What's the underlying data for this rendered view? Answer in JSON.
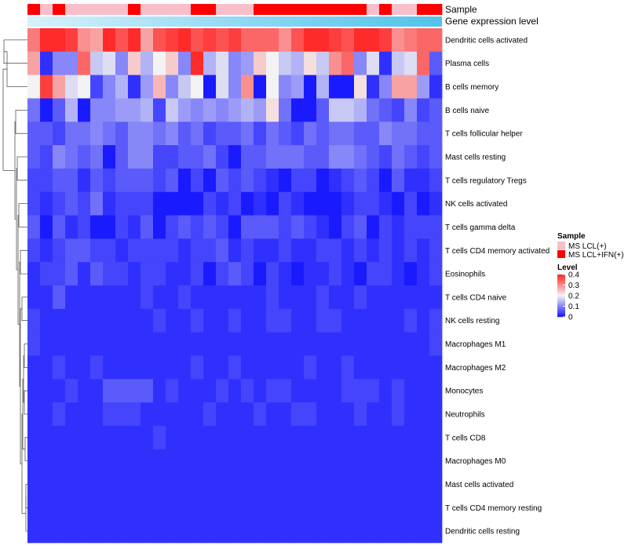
{
  "chart_data": {
    "type": "heatmap",
    "title": "",
    "annotation_labels": {
      "sample": "Sample",
      "expression": "Gene expression level"
    },
    "sample_groups": [
      "MS LCL(+)",
      "MS LCL+IFN(+)"
    ],
    "sample_assignments": [
      1,
      0,
      1,
      0,
      0,
      0,
      0,
      0,
      1,
      0,
      0,
      0,
      0,
      1,
      1,
      0,
      0,
      0,
      1,
      1,
      1,
      1,
      1,
      1,
      1,
      1,
      1,
      0,
      1,
      0,
      0,
      1,
      1
    ],
    "expression_gradient_colors": [
      "#d6f1fb",
      "#4fc3ec"
    ],
    "rows": [
      "Dendritic cells activated",
      "Plasma cells",
      "B cells memory",
      "B cells naive",
      "T cells follicular helper",
      "Mast cells resting",
      "T cells regulatory  Tregs",
      "NK cells activated",
      "T cells gamma delta",
      "T cells CD4 memory activated",
      "Eosinophils",
      "T cells CD4 naive",
      "NK cells resting",
      "Macrophages M1",
      "Macrophages M2",
      "Monocytes",
      "Neutrophils",
      "T cells CD8",
      "Macrophages M0",
      "Mast cells activated",
      "T cells CD4 memory resting",
      "Dendritic cells resting"
    ],
    "n_columns": 33,
    "values": [
      [
        0.32,
        0.4,
        0.4,
        0.38,
        0.3,
        0.28,
        0.4,
        0.36,
        0.4,
        0.28,
        0.36,
        0.38,
        0.4,
        0.36,
        0.38,
        0.36,
        0.38,
        0.34,
        0.34,
        0.34,
        0.3,
        0.36,
        0.4,
        0.4,
        0.38,
        0.36,
        0.4,
        0.4,
        0.38,
        0.3,
        0.32,
        0.34,
        0.34
      ],
      [
        0.28,
        0.02,
        0.1,
        0.1,
        0.34,
        0.16,
        0.18,
        0.1,
        0.24,
        0.14,
        0.2,
        0.24,
        0.1,
        0.4,
        0.14,
        0.18,
        0.1,
        0.12,
        0.24,
        0.2,
        0.16,
        0.14,
        0.22,
        0.16,
        0.3,
        0.34,
        0.1,
        0.18,
        0.02,
        0.16,
        0.18,
        0.34,
        0.06
      ],
      [
        0.2,
        0.38,
        0.28,
        0.18,
        0.2,
        0.04,
        0.1,
        0.14,
        0.02,
        0.12,
        0.26,
        0.1,
        0.16,
        0.2,
        0.0,
        0.18,
        0.1,
        0.3,
        0.0,
        0.2,
        0.1,
        0.12,
        0.0,
        0.14,
        0.0,
        0.0,
        0.22,
        0.02,
        0.1,
        0.28,
        0.28,
        0.12,
        0.02
      ],
      [
        0.08,
        0.0,
        0.06,
        0.14,
        0.0,
        0.1,
        0.1,
        0.12,
        0.12,
        0.14,
        0.04,
        0.16,
        0.12,
        0.1,
        0.12,
        0.1,
        0.12,
        0.14,
        0.12,
        0.22,
        0.08,
        0.0,
        0.0,
        0.06,
        0.16,
        0.16,
        0.14,
        0.08,
        0.06,
        0.04,
        0.1,
        0.04,
        0.06
      ],
      [
        0.06,
        0.06,
        0.04,
        0.08,
        0.08,
        0.1,
        0.08,
        0.06,
        0.1,
        0.1,
        0.08,
        0.1,
        0.06,
        0.08,
        0.04,
        0.06,
        0.06,
        0.08,
        0.04,
        0.08,
        0.06,
        0.04,
        0.08,
        0.06,
        0.08,
        0.08,
        0.06,
        0.06,
        0.1,
        0.08,
        0.08,
        0.06,
        0.06
      ],
      [
        0.06,
        0.04,
        0.1,
        0.08,
        0.06,
        0.08,
        0.0,
        0.06,
        0.1,
        0.1,
        0.04,
        0.04,
        0.06,
        0.06,
        0.08,
        0.04,
        0.0,
        0.06,
        0.06,
        0.08,
        0.08,
        0.08,
        0.06,
        0.06,
        0.1,
        0.1,
        0.08,
        0.06,
        0.04,
        0.08,
        0.06,
        0.04,
        0.06
      ],
      [
        0.04,
        0.04,
        0.06,
        0.06,
        0.02,
        0.06,
        0.04,
        0.06,
        0.06,
        0.06,
        0.04,
        0.06,
        0.0,
        0.04,
        0.0,
        0.06,
        0.04,
        0.06,
        0.04,
        0.02,
        0.0,
        0.04,
        0.04,
        0.0,
        0.02,
        0.04,
        0.06,
        0.04,
        0.0,
        0.06,
        0.02,
        0.02,
        0.04
      ],
      [
        0.04,
        0.02,
        0.04,
        0.06,
        0.04,
        0.08,
        0.02,
        0.04,
        0.04,
        0.04,
        0.0,
        0.0,
        0.0,
        0.0,
        0.04,
        0.02,
        0.04,
        0.0,
        0.02,
        0.0,
        0.04,
        0.02,
        0.0,
        0.0,
        0.0,
        0.02,
        0.04,
        0.04,
        0.02,
        0.0,
        0.04,
        0.0,
        0.02
      ],
      [
        0.06,
        0.0,
        0.06,
        0.02,
        0.04,
        0.0,
        0.0,
        0.04,
        0.02,
        0.06,
        0.0,
        0.04,
        0.06,
        0.04,
        0.06,
        0.04,
        0.0,
        0.06,
        0.06,
        0.06,
        0.04,
        0.06,
        0.04,
        0.02,
        0.0,
        0.04,
        0.06,
        0.0,
        0.04,
        0.02,
        0.04,
        0.04,
        0.04
      ],
      [
        0.04,
        0.02,
        0.04,
        0.06,
        0.06,
        0.04,
        0.04,
        0.02,
        0.04,
        0.04,
        0.04,
        0.04,
        0.02,
        0.04,
        0.04,
        0.06,
        0.02,
        0.04,
        0.02,
        0.02,
        0.04,
        0.02,
        0.02,
        0.04,
        0.04,
        0.02,
        0.04,
        0.02,
        0.04,
        0.02,
        0.04,
        0.02,
        0.04
      ],
      [
        0.02,
        0.04,
        0.04,
        0.06,
        0.02,
        0.06,
        0.04,
        0.04,
        0.02,
        0.04,
        0.04,
        0.02,
        0.02,
        0.04,
        0.0,
        0.04,
        0.06,
        0.04,
        0.0,
        0.04,
        0.02,
        0.0,
        0.02,
        0.02,
        0.04,
        0.02,
        0.0,
        0.04,
        0.04,
        0.02,
        0.0,
        0.02,
        0.04
      ],
      [
        0.02,
        0.02,
        0.06,
        0.02,
        0.02,
        0.02,
        0.02,
        0.02,
        0.02,
        0.04,
        0.02,
        0.02,
        0.04,
        0.02,
        0.02,
        0.02,
        0.02,
        0.02,
        0.02,
        0.04,
        0.02,
        0.02,
        0.02,
        0.04,
        0.02,
        0.02,
        0.04,
        0.02,
        0.02,
        0.02,
        0.02,
        0.02,
        0.02
      ],
      [
        0.04,
        0.02,
        0.02,
        0.02,
        0.02,
        0.02,
        0.02,
        0.02,
        0.02,
        0.02,
        0.04,
        0.02,
        0.02,
        0.04,
        0.02,
        0.02,
        0.04,
        0.02,
        0.02,
        0.04,
        0.04,
        0.02,
        0.02,
        0.04,
        0.04,
        0.02,
        0.02,
        0.02,
        0.02,
        0.02,
        0.04,
        0.02,
        0.04
      ],
      [
        0.04,
        0.02,
        0.02,
        0.02,
        0.02,
        0.02,
        0.02,
        0.02,
        0.02,
        0.02,
        0.02,
        0.02,
        0.02,
        0.02,
        0.02,
        0.02,
        0.02,
        0.02,
        0.02,
        0.02,
        0.02,
        0.02,
        0.02,
        0.02,
        0.02,
        0.02,
        0.02,
        0.02,
        0.02,
        0.02,
        0.02,
        0.02,
        0.04
      ],
      [
        0.02,
        0.02,
        0.04,
        0.02,
        0.02,
        0.04,
        0.02,
        0.02,
        0.02,
        0.02,
        0.02,
        0.02,
        0.02,
        0.04,
        0.02,
        0.02,
        0.04,
        0.02,
        0.02,
        0.02,
        0.02,
        0.02,
        0.04,
        0.02,
        0.02,
        0.04,
        0.02,
        0.02,
        0.02,
        0.02,
        0.02,
        0.02,
        0.02
      ],
      [
        0.02,
        0.02,
        0.02,
        0.04,
        0.02,
        0.02,
        0.06,
        0.06,
        0.06,
        0.06,
        0.02,
        0.04,
        0.02,
        0.02,
        0.02,
        0.04,
        0.02,
        0.04,
        0.02,
        0.04,
        0.04,
        0.02,
        0.02,
        0.02,
        0.02,
        0.04,
        0.04,
        0.04,
        0.02,
        0.04,
        0.02,
        0.02,
        0.02
      ],
      [
        0.02,
        0.02,
        0.04,
        0.02,
        0.02,
        0.02,
        0.04,
        0.04,
        0.04,
        0.02,
        0.02,
        0.02,
        0.02,
        0.02,
        0.04,
        0.02,
        0.02,
        0.02,
        0.04,
        0.02,
        0.02,
        0.04,
        0.04,
        0.02,
        0.02,
        0.02,
        0.04,
        0.02,
        0.02,
        0.04,
        0.02,
        0.02,
        0.02
      ],
      [
        0.02,
        0.02,
        0.02,
        0.02,
        0.02,
        0.02,
        0.02,
        0.02,
        0.02,
        0.02,
        0.04,
        0.02,
        0.02,
        0.02,
        0.02,
        0.02,
        0.02,
        0.02,
        0.02,
        0.02,
        0.02,
        0.02,
        0.02,
        0.02,
        0.02,
        0.02,
        0.02,
        0.02,
        0.02,
        0.02,
        0.02,
        0.02,
        0.02
      ],
      [
        0.02,
        0.02,
        0.02,
        0.02,
        0.02,
        0.02,
        0.02,
        0.02,
        0.02,
        0.02,
        0.02,
        0.02,
        0.02,
        0.02,
        0.02,
        0.02,
        0.02,
        0.02,
        0.02,
        0.02,
        0.02,
        0.02,
        0.02,
        0.02,
        0.02,
        0.02,
        0.02,
        0.02,
        0.02,
        0.02,
        0.02,
        0.02,
        0.02
      ],
      [
        0.02,
        0.02,
        0.02,
        0.02,
        0.02,
        0.02,
        0.02,
        0.02,
        0.02,
        0.02,
        0.02,
        0.02,
        0.02,
        0.02,
        0.02,
        0.02,
        0.02,
        0.02,
        0.02,
        0.02,
        0.02,
        0.02,
        0.02,
        0.02,
        0.02,
        0.02,
        0.02,
        0.02,
        0.02,
        0.02,
        0.02,
        0.02,
        0.02
      ],
      [
        0.02,
        0.02,
        0.02,
        0.02,
        0.02,
        0.02,
        0.02,
        0.02,
        0.02,
        0.02,
        0.02,
        0.02,
        0.02,
        0.02,
        0.02,
        0.02,
        0.02,
        0.02,
        0.02,
        0.02,
        0.02,
        0.02,
        0.02,
        0.02,
        0.02,
        0.02,
        0.02,
        0.02,
        0.02,
        0.02,
        0.02,
        0.02,
        0.02
      ],
      [
        0.02,
        0.02,
        0.02,
        0.02,
        0.02,
        0.02,
        0.02,
        0.02,
        0.02,
        0.02,
        0.02,
        0.02,
        0.02,
        0.02,
        0.02,
        0.02,
        0.02,
        0.02,
        0.02,
        0.02,
        0.02,
        0.02,
        0.02,
        0.02,
        0.02,
        0.02,
        0.02,
        0.02,
        0.02,
        0.02,
        0.02,
        0.02,
        0.02
      ]
    ],
    "color_scale": {
      "min": 0,
      "mid": 0.2,
      "max": 0.4,
      "low_color": "#1a1aff",
      "mid_color": "#f3f3f3",
      "high_color": "#ff2a2a"
    },
    "legend": {
      "sample_title": "Sample",
      "sample_items": [
        {
          "label": "MS LCL(+)",
          "color": "#f8bfcb"
        },
        {
          "label": "MS LCL+IFN(+)",
          "color": "#ff0000"
        }
      ],
      "level_title": "Level",
      "level_ticks": [
        "0.4",
        "0.3",
        "0.2",
        "0.1",
        "0"
      ],
      "level_tick_values": [
        0.4,
        0.3,
        0.2,
        0.1,
        0
      ],
      "placement": "right"
    }
  }
}
